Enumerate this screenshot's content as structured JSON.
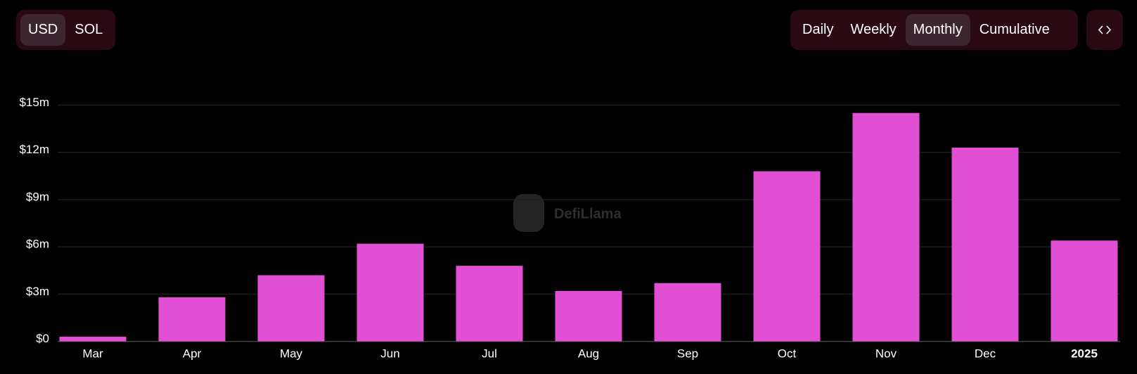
{
  "controls": {
    "currency": {
      "options": [
        "USD",
        "SOL"
      ],
      "selected": 0
    },
    "period": {
      "options": [
        "Daily",
        "Weekly",
        "Monthly",
        "Cumulative"
      ],
      "selected": 2
    }
  },
  "watermark": "DefiLlama",
  "chart_data": {
    "type": "bar",
    "categories": [
      "Mar",
      "Apr",
      "May",
      "Jun",
      "Jul",
      "Aug",
      "Sep",
      "Oct",
      "Nov",
      "Dec",
      "2025"
    ],
    "values": [
      300000,
      2800000,
      4200000,
      6200000,
      4800000,
      3200000,
      3700000,
      10800000,
      14500000,
      12300000,
      6400000
    ],
    "color": "#e04fd4",
    "ylim": [
      0,
      15000000
    ],
    "yticks": [
      {
        "value": 0,
        "label": "$0"
      },
      {
        "value": 3000000,
        "label": "$3m"
      },
      {
        "value": 6000000,
        "label": "$6m"
      },
      {
        "value": 9000000,
        "label": "$9m"
      },
      {
        "value": 12000000,
        "label": "$12m"
      },
      {
        "value": 15000000,
        "label": "$15m"
      }
    ],
    "grid": true
  }
}
